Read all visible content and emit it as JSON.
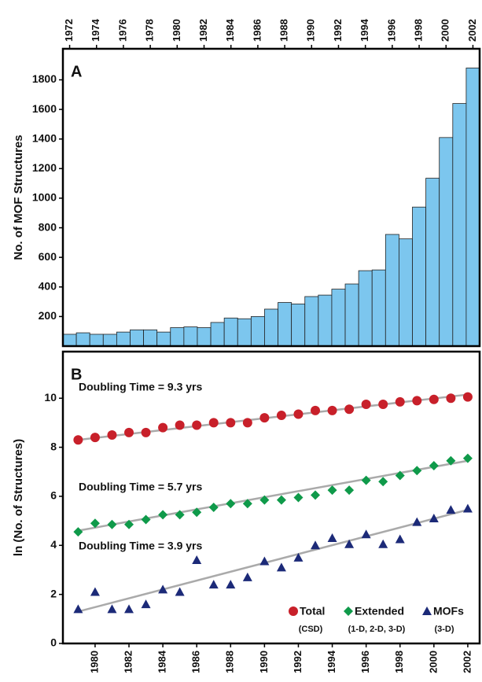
{
  "chart_data": [
    {
      "type": "bar",
      "panel_label": "A",
      "y_label": "No. of MOF Structures",
      "color": "#7cc6ee",
      "categories": [
        "1972",
        null,
        "1974",
        null,
        "1976",
        null,
        "1978",
        null,
        "1980",
        null,
        "1982",
        null,
        "1984",
        null,
        "1986",
        null,
        "1988",
        null,
        "1990",
        null,
        "1992",
        null,
        "1994",
        null,
        "1996",
        null,
        "1998",
        null,
        "2000",
        null,
        "2002"
      ],
      "values": [
        80,
        90,
        80,
        80,
        95,
        110,
        110,
        95,
        125,
        130,
        125,
        160,
        190,
        185,
        200,
        250,
        295,
        285,
        335,
        345,
        385,
        420,
        510,
        515,
        755,
        725,
        940,
        1135,
        1410,
        1640,
        1880
      ],
      "ylim": [
        0,
        2010
      ],
      "yticks": [
        200,
        400,
        600,
        800,
        1000,
        1200,
        1400,
        1600,
        1800
      ]
    },
    {
      "type": "scatter",
      "panel_label": "B",
      "y_label": "ln (No. of Structures)",
      "legend": "lower right",
      "trend_color": "#aaaaaa",
      "x": [
        1979,
        1980,
        1981,
        1982,
        1983,
        1984,
        1985,
        1986,
        1987,
        1988,
        1989,
        1990,
        1991,
        1992,
        1993,
        1994,
        1995,
        1996,
        1997,
        1998,
        1999,
        2000,
        2001,
        2002
      ],
      "xlim": [
        1978.1,
        2002.7
      ],
      "xticks": [
        1980,
        1982,
        1984,
        1986,
        1988,
        1990,
        1992,
        1994,
        1996,
        1998,
        2000,
        2002
      ],
      "ylim": [
        0,
        11.9
      ],
      "yticks": [
        0,
        2,
        4,
        6,
        8,
        10
      ],
      "series": [
        {
          "name": "Total",
          "sublabel": "(CSD)",
          "color": "#c8202a",
          "marker": "circle",
          "annotation": "Doubling Time = 9.3 yrs",
          "trend": [
            8.3,
            10.15
          ],
          "values": [
            8.3,
            8.4,
            8.5,
            8.6,
            8.6,
            8.8,
            8.9,
            8.9,
            9.0,
            9.0,
            9.0,
            9.2,
            9.3,
            9.35,
            9.5,
            9.5,
            9.55,
            9.75,
            9.75,
            9.85,
            9.9,
            9.95,
            10.0,
            10.05
          ]
        },
        {
          "name": "Extended",
          "sublabel": "(1-D, 2-D, 3-D)",
          "color": "#0f9a4a",
          "marker": "diamond",
          "annotation": "Doubling Time = 5.7 yrs",
          "trend": [
            4.6,
            7.45
          ],
          "values": [
            4.55,
            4.9,
            4.85,
            4.85,
            5.05,
            5.25,
            5.25,
            5.35,
            5.55,
            5.7,
            5.7,
            5.85,
            5.85,
            5.95,
            6.05,
            6.25,
            6.25,
            6.65,
            6.6,
            6.85,
            7.05,
            7.25,
            7.45,
            7.55
          ]
        },
        {
          "name": "MOFs",
          "sublabel": "(3-D)",
          "color": "#1c2a78",
          "marker": "triangle",
          "annotation": "Doubling Time = 3.9 yrs",
          "trend": [
            1.3,
            5.45
          ],
          "values": [
            1.4,
            2.1,
            1.4,
            1.4,
            1.6,
            2.2,
            2.1,
            3.4,
            2.4,
            2.4,
            2.7,
            3.35,
            3.1,
            3.5,
            4.0,
            4.3,
            4.05,
            4.45,
            4.05,
            4.25,
            4.95,
            5.1,
            5.45,
            5.5
          ]
        }
      ]
    }
  ]
}
